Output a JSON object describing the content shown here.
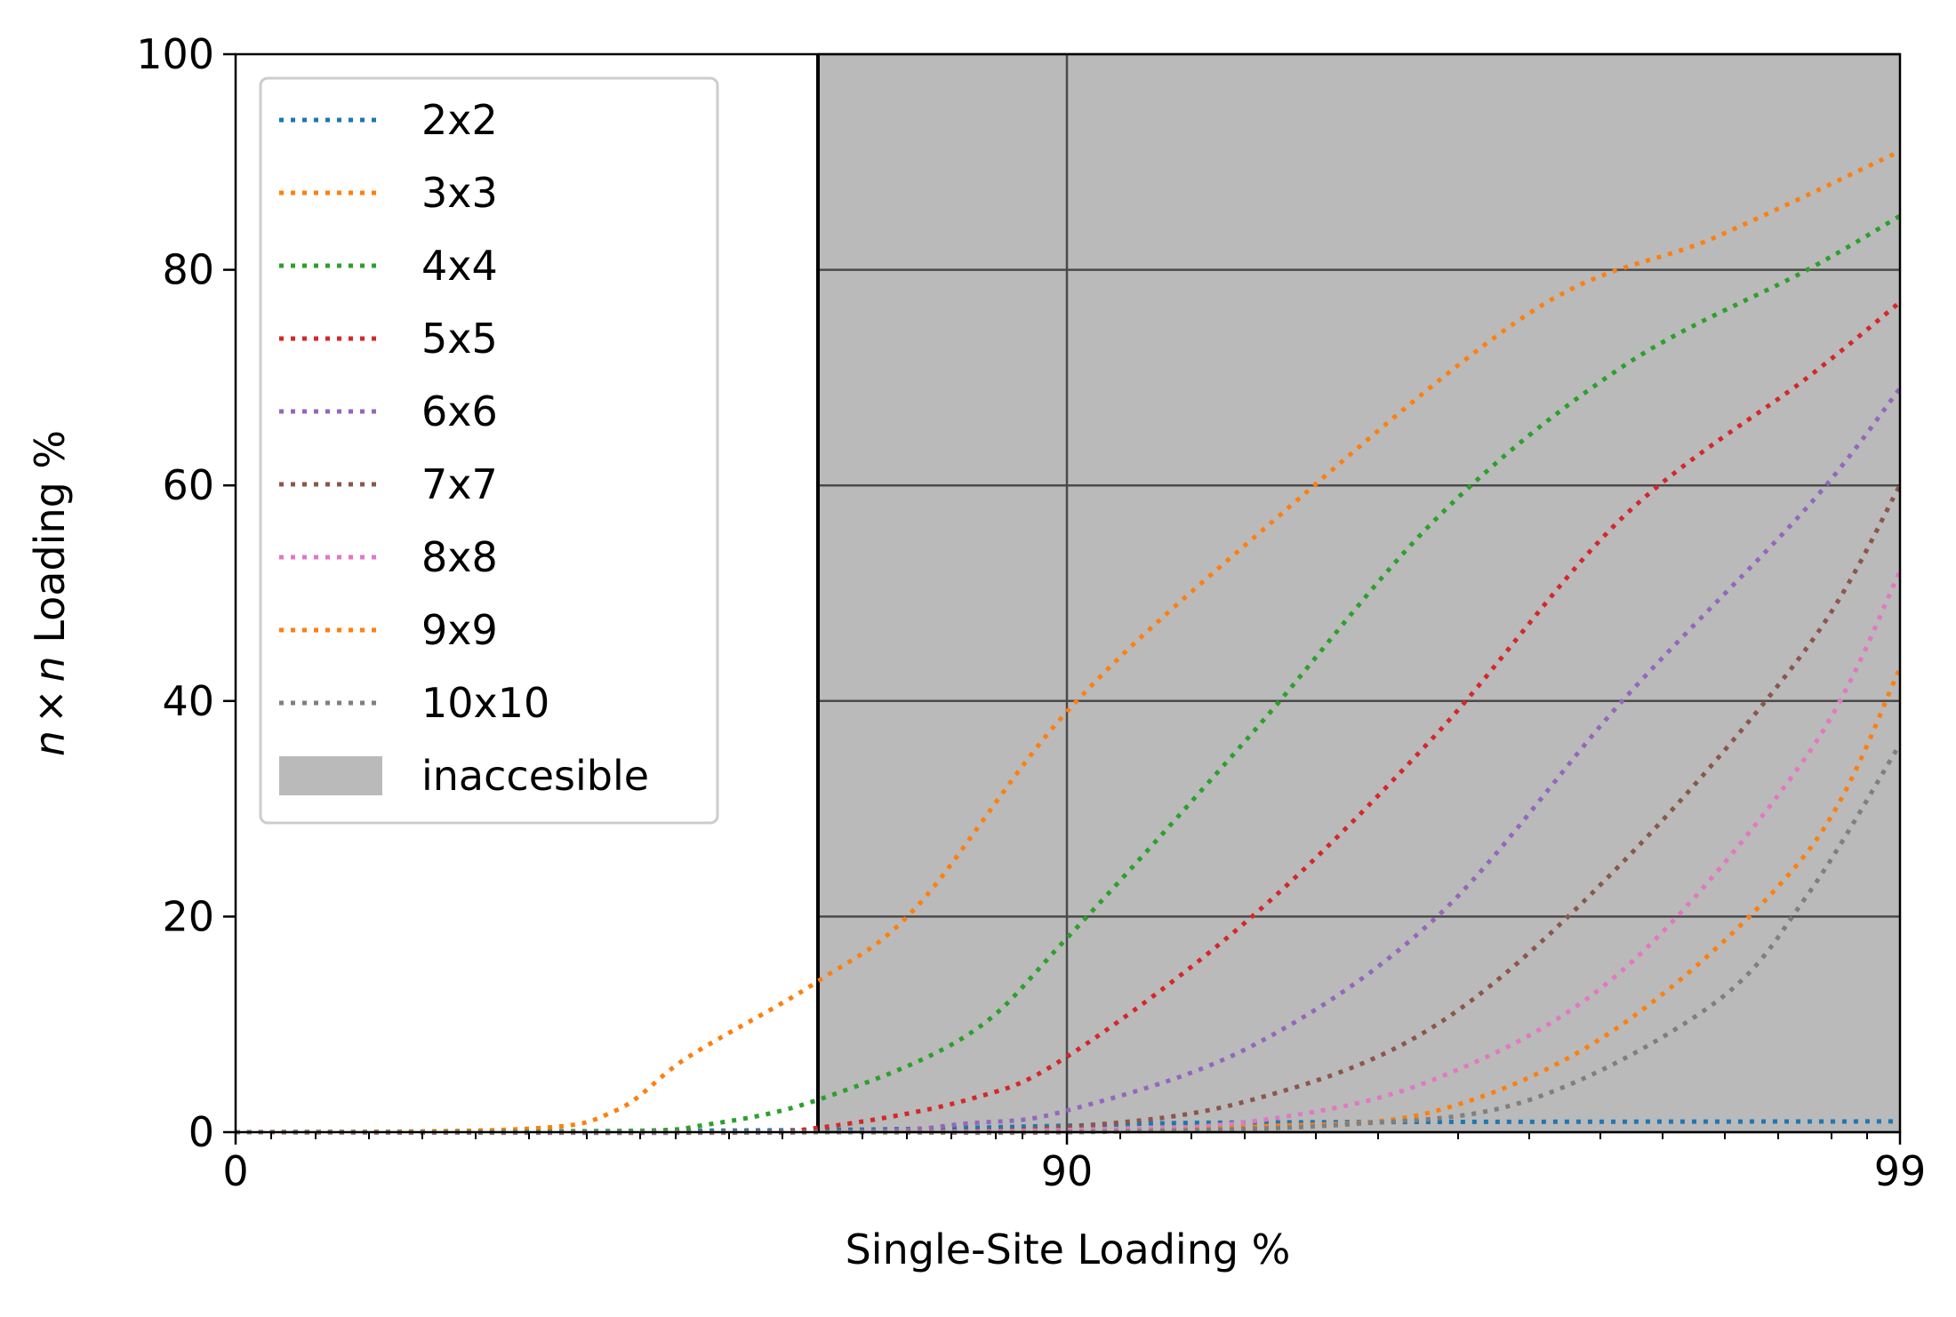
{
  "chart_data": {
    "type": "line",
    "xlabel": "Single-Site Loading %",
    "ylabel_parts": {
      "n1": "n",
      "times": "×",
      "n2": "n",
      "rest": " Loading %"
    },
    "ylim": [
      0,
      100
    ],
    "x_ticks": [
      "0",
      "90",
      "99"
    ],
    "y_ticks": [
      "0",
      "20",
      "40",
      "60",
      "80",
      "100"
    ],
    "grid": true,
    "legend_position": "upper-left",
    "inaccessible_region": {
      "label": "inaccesible",
      "color": "#bababa",
      "x_start": "≈85"
    },
    "series": [
      {
        "name": "2x2",
        "color": "#1f77b4",
        "points": [
          [
            0,
            0
          ],
          [
            85,
            0.2
          ],
          [
            90,
            0.6
          ],
          [
            92,
            0.9
          ],
          [
            99,
            1.0
          ]
        ]
      },
      {
        "name": "3x3",
        "color": "#ff7f0e",
        "points": [
          [
            0,
            0
          ],
          [
            60,
            0.3
          ],
          [
            70,
            2
          ],
          [
            78,
            7
          ],
          [
            85,
            14
          ],
          [
            87,
            21
          ],
          [
            90,
            39
          ],
          [
            92,
            55
          ],
          [
            95,
            76
          ],
          [
            97,
            83
          ],
          [
            99,
            91
          ]
        ]
      },
      {
        "name": "4x4",
        "color": "#2ca02c",
        "points": [
          [
            0,
            0
          ],
          [
            70,
            0.1
          ],
          [
            80,
            0.7
          ],
          [
            85,
            3
          ],
          [
            88,
            9
          ],
          [
            90,
            18
          ],
          [
            92,
            37
          ],
          [
            94,
            57
          ],
          [
            96,
            71
          ],
          [
            98,
            80
          ],
          [
            99,
            85
          ]
        ]
      },
      {
        "name": "5x5",
        "color": "#d62728",
        "points": [
          [
            0,
            0
          ],
          [
            80,
            0
          ],
          [
            85,
            0.4
          ],
          [
            88,
            3
          ],
          [
            90,
            7
          ],
          [
            92,
            20
          ],
          [
            94,
            37
          ],
          [
            96,
            57
          ],
          [
            98,
            70
          ],
          [
            99,
            77
          ]
        ]
      },
      {
        "name": "6x6",
        "color": "#9467bd",
        "points": [
          [
            0,
            0
          ],
          [
            85,
            0
          ],
          [
            88,
            0.8
          ],
          [
            90,
            2
          ],
          [
            92,
            8
          ],
          [
            94,
            20
          ],
          [
            96,
            40
          ],
          [
            98,
            58
          ],
          [
            99,
            69
          ]
        ]
      },
      {
        "name": "7x7",
        "color": "#8c564b",
        "points": [
          [
            0,
            0
          ],
          [
            85,
            0
          ],
          [
            90,
            0.5
          ],
          [
            92,
            3
          ],
          [
            94,
            10
          ],
          [
            96,
            25
          ],
          [
            98,
            45
          ],
          [
            99,
            60
          ]
        ]
      },
      {
        "name": "8x8",
        "color": "#e377c2",
        "points": [
          [
            0,
            0
          ],
          [
            85,
            0
          ],
          [
            90,
            0.2
          ],
          [
            92,
            1
          ],
          [
            94,
            5
          ],
          [
            96,
            15
          ],
          [
            98,
            35
          ],
          [
            99,
            52
          ]
        ]
      },
      {
        "name": "9x9",
        "color": "#ff7f0e",
        "points": [
          [
            0,
            0
          ],
          [
            85,
            0
          ],
          [
            90,
            0
          ],
          [
            92,
            0.5
          ],
          [
            94,
            2
          ],
          [
            96,
            10
          ],
          [
            98,
            26
          ],
          [
            99,
            43
          ]
        ]
      },
      {
        "name": "10x10",
        "color": "#7f7f7f",
        "points": [
          [
            0,
            0
          ],
          [
            85,
            0
          ],
          [
            90,
            0
          ],
          [
            93,
            0.7
          ],
          [
            95,
            3
          ],
          [
            97,
            12
          ],
          [
            98,
            22
          ],
          [
            99,
            36
          ]
        ]
      }
    ]
  }
}
